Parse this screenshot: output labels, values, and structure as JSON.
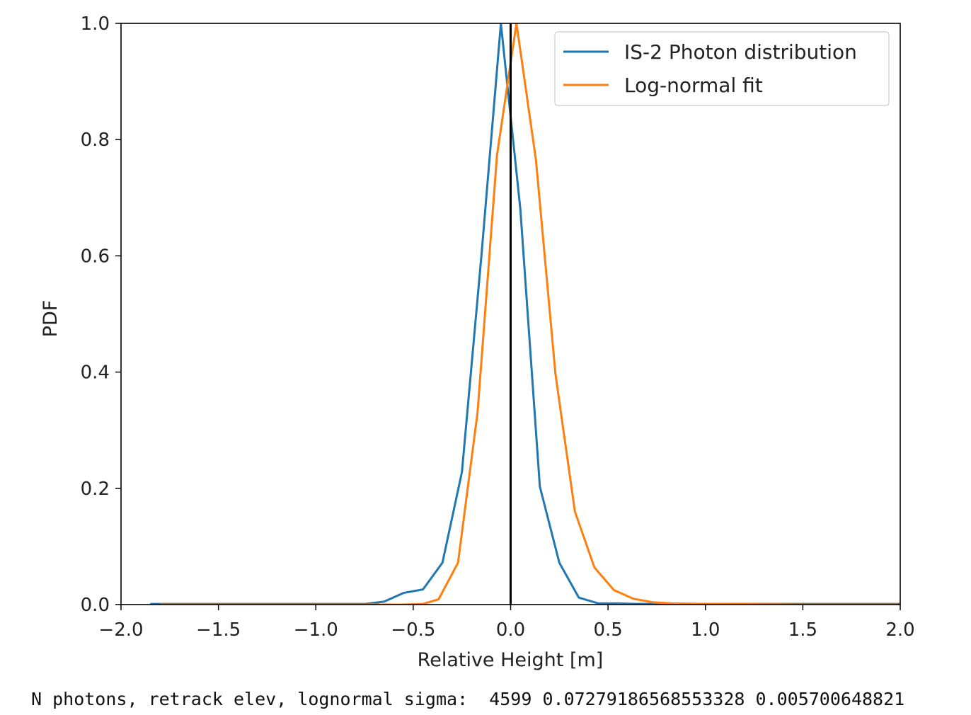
{
  "chart_data": {
    "type": "line",
    "title": "",
    "xlabel": "Relative Height [m]",
    "ylabel": "PDF",
    "xlim": [
      -2.0,
      2.0
    ],
    "ylim": [
      0.0,
      1.0
    ],
    "x_ticks": [
      "−2.0",
      "−1.5",
      "−1.0",
      "−0.5",
      "0.0",
      "0.5",
      "1.0",
      "1.5",
      "2.0"
    ],
    "x_tick_values": [
      -2.0,
      -1.5,
      -1.0,
      -0.5,
      0.0,
      0.5,
      1.0,
      1.5,
      2.0
    ],
    "y_ticks": [
      "0.0",
      "0.2",
      "0.4",
      "0.6",
      "0.8",
      "1.0"
    ],
    "y_tick_values": [
      0.0,
      0.2,
      0.4,
      0.6,
      0.8,
      1.0
    ],
    "grid": false,
    "legend_position": "top-right",
    "vline_x": 0.0,
    "series": [
      {
        "name": "IS-2 Photon distribution",
        "color": "#1f77b4",
        "x": [
          -1.85,
          -1.75,
          -1.65,
          -1.55,
          -1.45,
          -1.35,
          -1.25,
          -1.15,
          -1.05,
          -0.95,
          -0.85,
          -0.75,
          -0.65,
          -0.55,
          -0.45,
          -0.35,
          -0.25,
          -0.15,
          -0.05,
          0.05,
          0.15,
          0.25,
          0.35,
          0.45,
          0.55,
          0.65,
          0.75,
          0.85,
          0.95,
          1.05,
          1.15,
          1.25,
          1.35,
          1.45,
          1.55,
          1.65,
          1.75,
          1.85,
          1.95,
          2.0
        ],
        "y": [
          0.001,
          0.001,
          0.001,
          0.001,
          0.001,
          0.001,
          0.001,
          0.001,
          0.001,
          0.001,
          0.001,
          0.001,
          0.005,
          0.02,
          0.026,
          0.072,
          0.228,
          0.6,
          1.0,
          0.68,
          0.203,
          0.072,
          0.012,
          0.002,
          0.002,
          0.001,
          0.001,
          0.001,
          0.001,
          0.001,
          0.001,
          0.001,
          0.001,
          0.001,
          0.001,
          0.001,
          0.001,
          0.001,
          0.001,
          0.001
        ]
      },
      {
        "name": "Log-normal fit",
        "color": "#ff7f0e",
        "x": [
          -1.8,
          -1.0,
          -0.7,
          -0.55,
          -0.45,
          -0.37,
          -0.27,
          -0.17,
          -0.07,
          0.03,
          0.13,
          0.23,
          0.33,
          0.43,
          0.53,
          0.63,
          0.73,
          0.83,
          1.0,
          1.5,
          2.0
        ],
        "y": [
          0.0,
          0.0,
          0.0,
          0.0,
          0.001,
          0.009,
          0.072,
          0.33,
          0.773,
          1.0,
          0.765,
          0.397,
          0.16,
          0.064,
          0.025,
          0.01,
          0.004,
          0.002,
          0.001,
          0.0,
          0.0
        ]
      }
    ]
  },
  "output": {
    "text": "N photons, retrack elev, lognormal sigma:  4599 0.07279186568553328 0.005700648821"
  }
}
